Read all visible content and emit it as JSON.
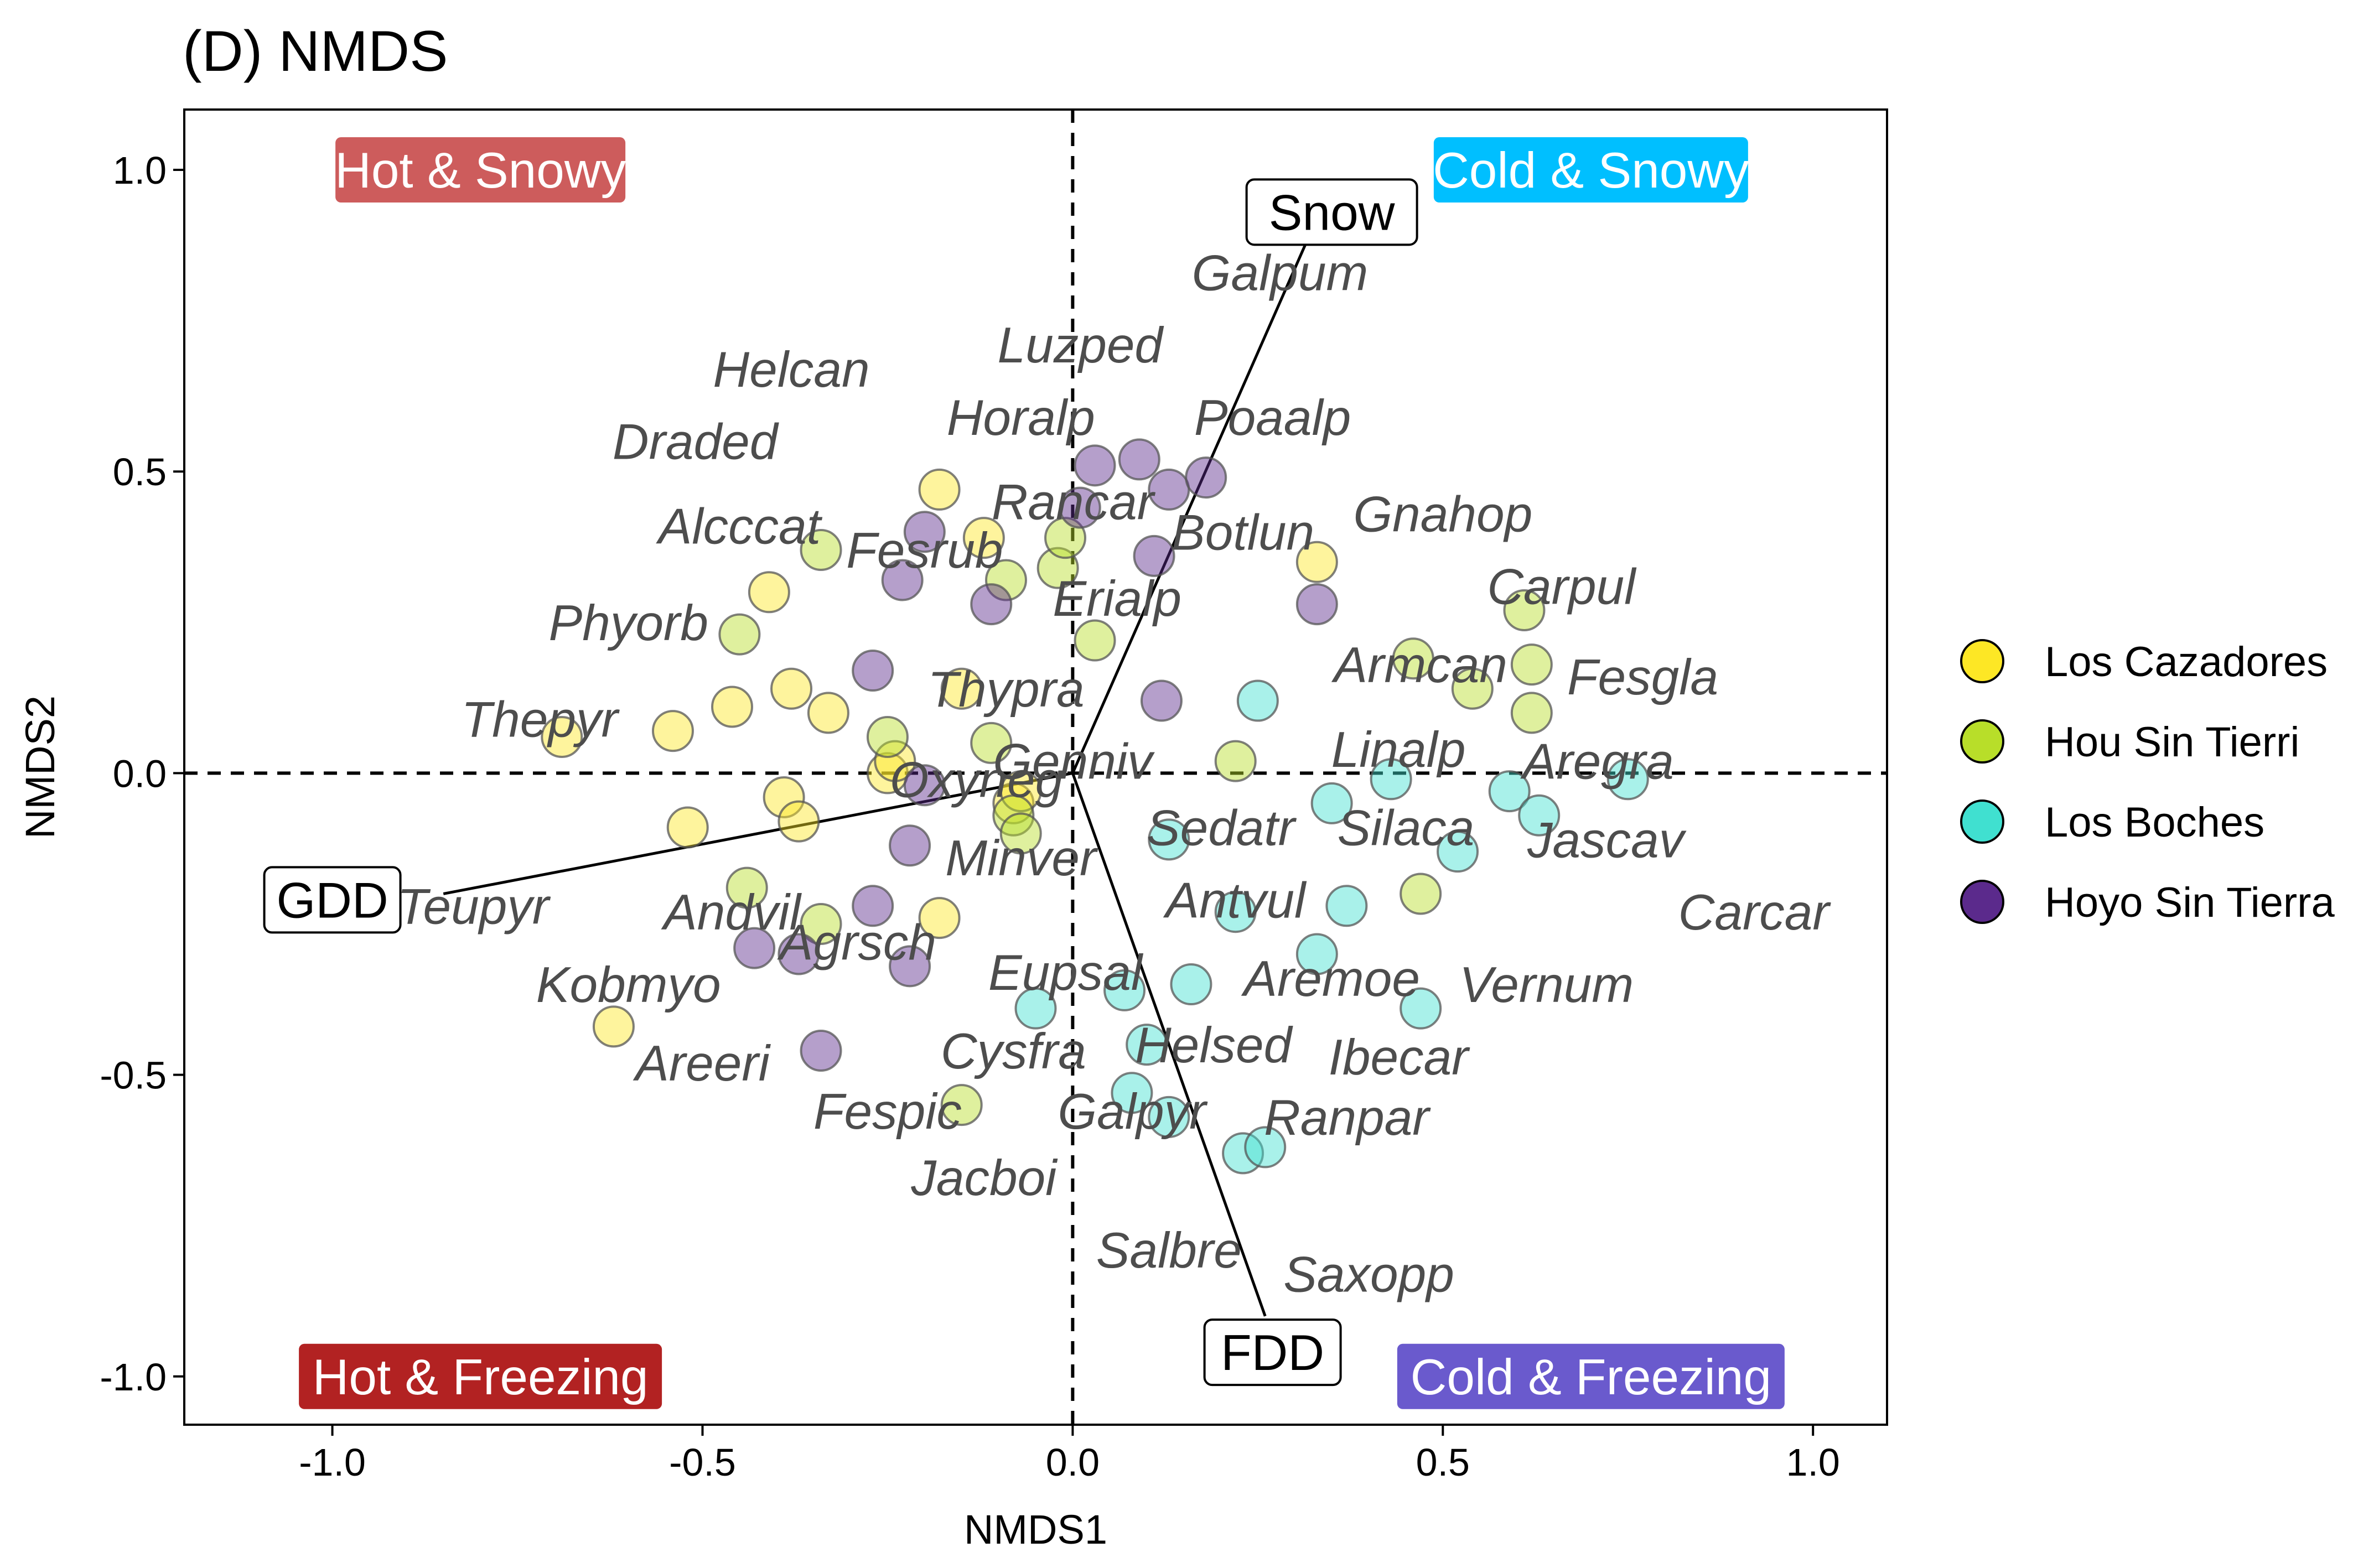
{
  "chart_data": {
    "type": "scatter",
    "title": "(D) NMDS",
    "xlabel": "NMDS1",
    "ylabel": "NMDS2",
    "xlim": [
      -1.2,
      1.1
    ],
    "ylim": [
      -1.08,
      1.1
    ],
    "xticks": [
      -1.0,
      -0.5,
      0.0,
      0.5,
      1.0
    ],
    "xtick_labels": [
      "-1.0",
      "-0.5",
      "0.0",
      "0.5",
      "1.0"
    ],
    "yticks": [
      -1.0,
      -0.5,
      0.0,
      0.5,
      1.0
    ],
    "ytick_labels": [
      "-1.0",
      "-0.5",
      "0.0",
      "0.5",
      "1.0"
    ],
    "grid": false,
    "reference_lines": {
      "x": 0,
      "y": 0,
      "style": "dashed"
    },
    "legend": {
      "position": "right",
      "entries": [
        "Los Cazadores",
        "Hou Sin Tierri",
        "Los Boches",
        "Hoyo Sin Tierra"
      ]
    },
    "series": [
      {
        "name": "Los Cazadores",
        "color": "#FDE725",
        "points": [
          {
            "x": -0.69,
            "y": 0.06
          },
          {
            "x": -0.62,
            "y": -0.42
          },
          {
            "x": -0.54,
            "y": 0.07
          },
          {
            "x": -0.52,
            "y": -0.09
          },
          {
            "x": -0.46,
            "y": 0.11
          },
          {
            "x": -0.41,
            "y": 0.3
          },
          {
            "x": -0.39,
            "y": -0.04
          },
          {
            "x": -0.38,
            "y": 0.14
          },
          {
            "x": -0.37,
            "y": -0.08
          },
          {
            "x": -0.33,
            "y": 0.1
          },
          {
            "x": -0.25,
            "y": 0.0
          },
          {
            "x": -0.24,
            "y": 0.02
          },
          {
            "x": -0.18,
            "y": 0.47
          },
          {
            "x": -0.18,
            "y": -0.24
          },
          {
            "x": -0.15,
            "y": 0.14
          },
          {
            "x": -0.12,
            "y": 0.39
          },
          {
            "x": -0.08,
            "y": -0.05
          },
          {
            "x": -0.07,
            "y": -0.03
          },
          {
            "x": 0.33,
            "y": 0.35
          }
        ]
      },
      {
        "name": "Hou Sin Tierri",
        "color": "#B8DE29",
        "points": [
          {
            "x": -0.45,
            "y": 0.23
          },
          {
            "x": -0.44,
            "y": -0.19
          },
          {
            "x": -0.34,
            "y": 0.37
          },
          {
            "x": -0.34,
            "y": -0.25
          },
          {
            "x": -0.25,
            "y": 0.06
          },
          {
            "x": -0.15,
            "y": -0.55
          },
          {
            "x": -0.11,
            "y": 0.05
          },
          {
            "x": -0.09,
            "y": 0.32
          },
          {
            "x": -0.08,
            "y": -0.07
          },
          {
            "x": -0.07,
            "y": -0.1
          },
          {
            "x": -0.02,
            "y": 0.34
          },
          {
            "x": -0.01,
            "y": 0.39
          },
          {
            "x": 0.03,
            "y": 0.22
          },
          {
            "x": 0.22,
            "y": 0.02
          },
          {
            "x": 0.46,
            "y": 0.19
          },
          {
            "x": 0.47,
            "y": -0.2
          },
          {
            "x": 0.54,
            "y": 0.14
          },
          {
            "x": 0.61,
            "y": 0.27
          },
          {
            "x": 0.62,
            "y": 0.18
          },
          {
            "x": 0.62,
            "y": 0.1
          }
        ]
      },
      {
        "name": "Los Boches",
        "color": "#40E0D0",
        "points": [
          {
            "x": -0.05,
            "y": -0.39
          },
          {
            "x": 0.07,
            "y": -0.36
          },
          {
            "x": 0.08,
            "y": -0.53
          },
          {
            "x": 0.1,
            "y": -0.45
          },
          {
            "x": 0.13,
            "y": -0.57
          },
          {
            "x": 0.13,
            "y": -0.11
          },
          {
            "x": 0.16,
            "y": -0.35
          },
          {
            "x": 0.22,
            "y": -0.23
          },
          {
            "x": 0.23,
            "y": -0.63
          },
          {
            "x": 0.26,
            "y": -0.62
          },
          {
            "x": 0.25,
            "y": 0.12
          },
          {
            "x": 0.33,
            "y": -0.3
          },
          {
            "x": 0.35,
            "y": -0.05
          },
          {
            "x": 0.37,
            "y": -0.22
          },
          {
            "x": 0.43,
            "y": -0.01
          },
          {
            "x": 0.47,
            "y": -0.39
          },
          {
            "x": 0.52,
            "y": -0.13
          },
          {
            "x": 0.59,
            "y": -0.03
          },
          {
            "x": 0.63,
            "y": -0.07
          },
          {
            "x": 0.75,
            "y": -0.01
          }
        ]
      },
      {
        "name": "Hoyo Sin Tierra",
        "color": "#5B2A8C",
        "points": [
          {
            "x": -0.43,
            "y": -0.29
          },
          {
            "x": -0.37,
            "y": -0.3
          },
          {
            "x": -0.34,
            "y": -0.46
          },
          {
            "x": -0.27,
            "y": 0.17
          },
          {
            "x": -0.27,
            "y": -0.22
          },
          {
            "x": -0.23,
            "y": 0.32
          },
          {
            "x": -0.22,
            "y": -0.12
          },
          {
            "x": -0.22,
            "y": -0.32
          },
          {
            "x": -0.2,
            "y": -0.02
          },
          {
            "x": -0.2,
            "y": 0.4
          },
          {
            "x": -0.11,
            "y": 0.28
          },
          {
            "x": 0.01,
            "y": 0.44
          },
          {
            "x": 0.03,
            "y": 0.51
          },
          {
            "x": 0.09,
            "y": 0.52
          },
          {
            "x": 0.11,
            "y": 0.36
          },
          {
            "x": 0.12,
            "y": 0.12
          },
          {
            "x": 0.13,
            "y": 0.47
          },
          {
            "x": 0.18,
            "y": 0.49
          },
          {
            "x": 0.33,
            "y": 0.28
          }
        ]
      }
    ],
    "species_labels": [
      {
        "text": "Galpum",
        "x": 0.28,
        "y": 0.83
      },
      {
        "text": "Luzped",
        "x": 0.01,
        "y": 0.71
      },
      {
        "text": "Helcan",
        "x": -0.38,
        "y": 0.67
      },
      {
        "text": "Horalp",
        "x": -0.07,
        "y": 0.59
      },
      {
        "text": "Poaalp",
        "x": 0.27,
        "y": 0.59
      },
      {
        "text": "Draded",
        "x": -0.51,
        "y": 0.55
      },
      {
        "text": "Rancar",
        "x": 0.0,
        "y": 0.45
      },
      {
        "text": "Gnahop",
        "x": 0.5,
        "y": 0.43
      },
      {
        "text": "Alcccat",
        "x": -0.45,
        "y": 0.41
      },
      {
        "text": "Botlun",
        "x": 0.23,
        "y": 0.4
      },
      {
        "text": "Fesrub",
        "x": -0.2,
        "y": 0.37
      },
      {
        "text": "Carpul",
        "x": 0.66,
        "y": 0.31
      },
      {
        "text": "Erialp",
        "x": 0.06,
        "y": 0.29
      },
      {
        "text": "Phyorb",
        "x": -0.6,
        "y": 0.25
      },
      {
        "text": "Armcan",
        "x": 0.47,
        "y": 0.18
      },
      {
        "text": "Fesgla",
        "x": 0.77,
        "y": 0.16
      },
      {
        "text": "Thypra",
        "x": -0.09,
        "y": 0.14
      },
      {
        "text": "Thepyr",
        "x": -0.72,
        "y": 0.09
      },
      {
        "text": "Linalp",
        "x": 0.44,
        "y": 0.04
      },
      {
        "text": "Genniv",
        "x": 0.0,
        "y": 0.02
      },
      {
        "text": "Aregra",
        "x": 0.71,
        "y": 0.02
      },
      {
        "text": "Oxyneg",
        "x": -0.13,
        "y": -0.01
      },
      {
        "text": "Sedatr",
        "x": 0.2,
        "y": -0.09
      },
      {
        "text": "Silaca",
        "x": 0.45,
        "y": -0.09
      },
      {
        "text": "Jascav",
        "x": 0.72,
        "y": -0.11
      },
      {
        "text": "Minver",
        "x": -0.07,
        "y": -0.14
      },
      {
        "text": "Antvul",
        "x": 0.22,
        "y": -0.21
      },
      {
        "text": "Carcar",
        "x": 0.92,
        "y": -0.23
      },
      {
        "text": "Teupyr",
        "x": -0.81,
        "y": -0.22
      },
      {
        "text": "Andvil",
        "x": -0.46,
        "y": -0.23
      },
      {
        "text": "Agrsch",
        "x": -0.29,
        "y": -0.28
      },
      {
        "text": "Aremoe",
        "x": 0.35,
        "y": -0.34
      },
      {
        "text": "Eupsal",
        "x": -0.01,
        "y": -0.33
      },
      {
        "text": "Vernum",
        "x": 0.64,
        "y": -0.35
      },
      {
        "text": "Kobmyo",
        "x": -0.6,
        "y": -0.35
      },
      {
        "text": "Helsed",
        "x": 0.19,
        "y": -0.45
      },
      {
        "text": "Cysfra",
        "x": -0.08,
        "y": -0.46
      },
      {
        "text": "Ibecar",
        "x": 0.44,
        "y": -0.47
      },
      {
        "text": "Areeri",
        "x": -0.5,
        "y": -0.48
      },
      {
        "text": "Fespic",
        "x": -0.25,
        "y": -0.56
      },
      {
        "text": "Galpyr",
        "x": 0.08,
        "y": -0.56
      },
      {
        "text": "Ranpar",
        "x": 0.37,
        "y": -0.57
      },
      {
        "text": "Jacboi",
        "x": -0.12,
        "y": -0.67
      },
      {
        "text": "Salbre",
        "x": 0.13,
        "y": -0.79
      },
      {
        "text": "Saxopp",
        "x": 0.4,
        "y": -0.83
      }
    ],
    "vectors": [
      {
        "label": "Snow",
        "x": 0.33,
        "y": 0.92,
        "label_x": 0.35,
        "label_y": 0.93
      },
      {
        "label": "GDD",
        "x": -0.85,
        "y": -0.2,
        "label_x": -1.0,
        "label_y": -0.21
      },
      {
        "label": "FDD",
        "x": 0.26,
        "y": -0.9,
        "label_x": 0.27,
        "label_y": -0.96
      }
    ],
    "quadrant_labels": [
      {
        "text": "Hot & Snowy",
        "x": -0.8,
        "y": 1.0,
        "color": "#CD5C5C"
      },
      {
        "text": "Cold & Snowy",
        "x": 0.7,
        "y": 1.0,
        "color": "#00BFFF"
      },
      {
        "text": "Hot & Freezing",
        "x": -0.8,
        "y": -1.0,
        "color": "#B22222"
      },
      {
        "text": "Cold & Freezing",
        "x": 0.7,
        "y": -1.0,
        "color": "#6A5ACD"
      }
    ]
  }
}
